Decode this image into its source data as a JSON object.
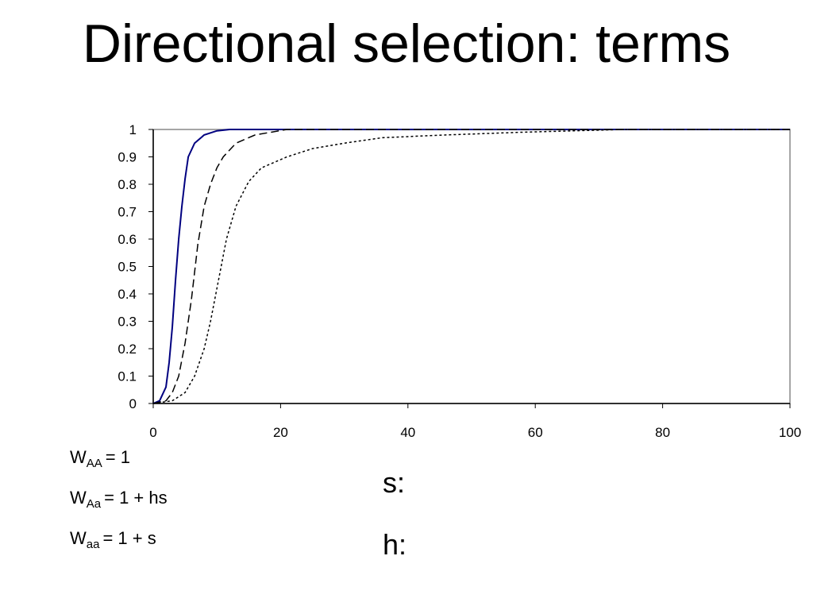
{
  "chart_data": {
    "type": "line",
    "title": "Directional selection: terms",
    "xlim": [
      0,
      100
    ],
    "xticks": [
      0,
      20,
      40,
      60,
      80,
      100
    ],
    "ylim": [
      0,
      1
    ],
    "yticks": [
      0,
      0.1,
      0.2,
      0.3,
      0.4,
      0.5,
      0.6,
      0.7,
      0.8,
      0.9,
      1
    ],
    "series": [
      {
        "color": "#000080",
        "dash": "solid",
        "x": [
          0,
          1,
          2,
          2.5,
          3,
          3.5,
          4,
          4.5,
          5,
          5.5,
          6.5,
          8,
          10,
          12,
          100
        ],
        "values": [
          0,
          0.01,
          0.06,
          0.15,
          0.28,
          0.45,
          0.6,
          0.72,
          0.82,
          0.9,
          0.95,
          0.98,
          0.995,
          1,
          1
        ]
      },
      {
        "color": "#000000",
        "dash": "dashed",
        "x": [
          0,
          2,
          3,
          4,
          5,
          6,
          7,
          8,
          9,
          10,
          11,
          13,
          16,
          21,
          100
        ],
        "values": [
          0,
          0.01,
          0.04,
          0.1,
          0.22,
          0.38,
          0.58,
          0.72,
          0.8,
          0.86,
          0.9,
          0.95,
          0.98,
          1,
          1
        ]
      },
      {
        "color": "#000000",
        "dash": "dotted",
        "x": [
          0,
          3,
          5,
          6.5,
          8,
          9,
          10,
          11.5,
          13,
          15,
          17,
          21,
          25,
          30,
          36,
          46,
          58,
          74,
          100
        ],
        "values": [
          0,
          0.01,
          0.04,
          0.1,
          0.2,
          0.3,
          0.42,
          0.6,
          0.72,
          0.81,
          0.86,
          0.9,
          0.93,
          0.95,
          0.97,
          0.98,
          0.99,
          1,
          1
        ]
      }
    ]
  },
  "equations": [
    {
      "symbol": "W",
      "subscript": "AA",
      "rhs": "= 1"
    },
    {
      "symbol": "W",
      "subscript": "Aa",
      "rhs": "= 1 + hs"
    },
    {
      "symbol": "W",
      "subscript": "aa",
      "rhs": "= 1 + s"
    }
  ],
  "terms": [
    "s:",
    "h:"
  ]
}
